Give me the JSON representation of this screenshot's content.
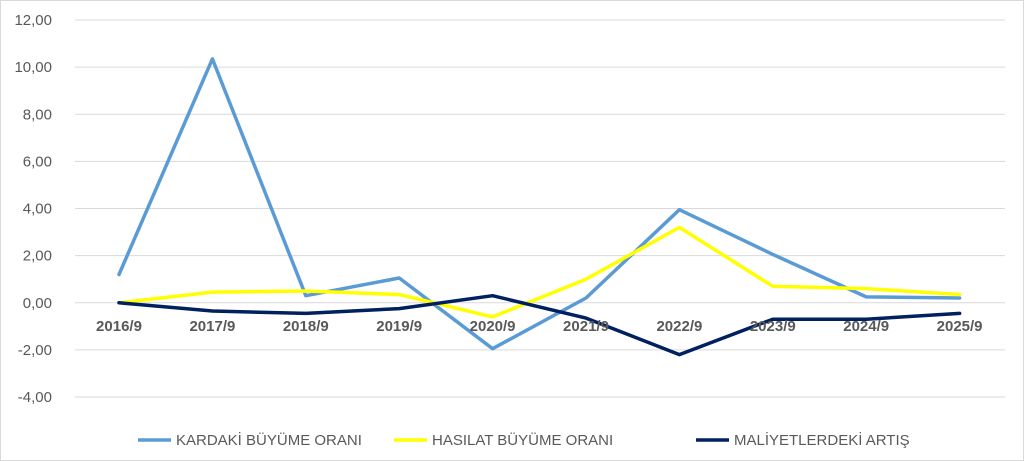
{
  "chart_data": {
    "type": "line",
    "title": "",
    "xlabel": "",
    "ylabel": "",
    "categories": [
      "2016/9",
      "2017/9",
      "2018/9",
      "2019/9",
      "2020/9",
      "2021/9",
      "2022/9",
      "2023/9",
      "2024/9",
      "2025/9"
    ],
    "ylim": [
      -4,
      12
    ],
    "y_ticks": [
      12,
      10,
      8,
      6,
      4,
      2,
      0,
      -2,
      -4
    ],
    "y_tick_labels": [
      "12,00",
      "10,00",
      "8,00",
      "6,00",
      "4,00",
      "2,00",
      "0,00",
      "-2,00",
      "-4,00"
    ],
    "grid": true,
    "legend_position": "bottom",
    "series": [
      {
        "name": "KARDAKİ BÜYÜME ORANI",
        "color": "#5b9bd5",
        "values": [
          1.2,
          10.35,
          0.3,
          1.05,
          -1.95,
          0.2,
          3.95,
          2.05,
          0.25,
          0.2
        ]
      },
      {
        "name": "HASILAT BÜYÜME ORANI",
        "color": "#ffff00",
        "values": [
          0.0,
          0.45,
          0.5,
          0.35,
          -0.6,
          1.0,
          3.2,
          0.7,
          0.6,
          0.35
        ]
      },
      {
        "name": "MALİYETLERDEKİ ARTIŞ",
        "color": "#002060",
        "values": [
          0.0,
          -0.35,
          -0.45,
          -0.25,
          0.3,
          -0.65,
          -2.2,
          -0.7,
          -0.7,
          -0.45
        ]
      }
    ]
  }
}
